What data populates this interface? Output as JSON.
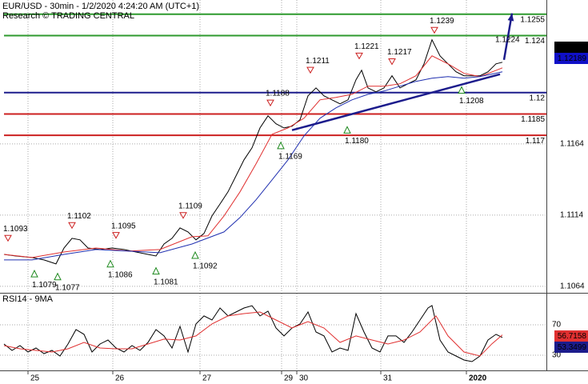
{
  "chart_data": [
    {
      "type": "line",
      "title": "EUR/USD - 30min - 1/2/2020 4:24:20 AM (UTC+1)",
      "subtitle": "Research © TRADING CENTRAL",
      "xlim": [
        0,
        170.75
      ],
      "ylim": [
        1.106,
        1.1265
      ],
      "yticks": [
        1.1164,
        1.1114,
        1.1064
      ],
      "grid": true,
      "series": [
        {
          "color": "#000000",
          "x": [
            1.25,
            5,
            10,
            13.75,
            17.5,
            20,
            22.5,
            25,
            27.5,
            31.25,
            35,
            38.75,
            42.5,
            46.25,
            48.75,
            51.25,
            53.75,
            56.25,
            58.75,
            61.25,
            63.75,
            66.25,
            68.75,
            71.25,
            73.75,
            76.25,
            78.75,
            81.25,
            83.75,
            86.25,
            88.75,
            91.25,
            93.75,
            96.25,
            98.75,
            101.25,
            103.75,
            106.25,
            108.75,
            111.25,
            113,
            115,
            117.5,
            120,
            122.5,
            125,
            127.5,
            130,
            132.5,
            135,
            137.5,
            140,
            142.5,
            145,
            147.5,
            150,
            152.5,
            155,
            157
          ],
          "values": [
            1.10864,
            1.10853,
            1.10842,
            1.10825,
            1.10797,
            1.10909,
            1.10977,
            1.10966,
            1.10909,
            1.10898,
            1.10909,
            1.10898,
            1.10881,
            1.10864,
            1.10853,
            1.10937,
            1.10977,
            1.1105,
            1.11022,
            1.10966,
            1.11011,
            1.11134,
            1.11218,
            1.11303,
            1.11415,
            1.11528,
            1.11612,
            1.11752,
            1.11837,
            1.11781,
            1.11752,
            1.11764,
            1.11809,
            1.11977,
            1.12033,
            1.11977,
            1.11949,
            1.11921,
            1.11949,
            1.1209,
            1.12157,
            1.12033,
            1.12005,
            1.12033,
            1.12118,
            1.12033,
            1.12062,
            1.1209,
            1.12202,
            1.12371,
            1.12258,
            1.12202,
            1.12146,
            1.12118,
            1.12118,
            1.12118,
            1.12146,
            1.12202,
            1.12213
          ]
        },
        {
          "color": "#e03030",
          "x": [
            1.25,
            10,
            20,
            30,
            40,
            50,
            60,
            65,
            70,
            75,
            80,
            85,
            90,
            95,
            100,
            105,
            110,
            115,
            120,
            125,
            130,
            135,
            140,
            145,
            150,
            157
          ],
          "values": [
            1.10864,
            1.10842,
            1.10881,
            1.10909,
            1.10887,
            1.10898,
            1.10988,
            1.10994,
            1.11134,
            1.11303,
            1.11499,
            1.11707,
            1.11752,
            1.1182,
            1.11949,
            1.11966,
            1.11988,
            1.12045,
            1.12045,
            1.12062,
            1.12118,
            1.12258,
            1.12202,
            1.12135,
            1.12112,
            1.12174
          ]
        },
        {
          "color": "#2030b0",
          "x": [
            1.25,
            10,
            20,
            30,
            40,
            50,
            60,
            70,
            75,
            80,
            85,
            90,
            95,
            100,
            105,
            110,
            115,
            120,
            125,
            130,
            135,
            140,
            145,
            150,
            157
          ],
          "values": [
            1.10825,
            1.10825,
            1.10864,
            1.10898,
            1.10887,
            1.10876,
            1.10937,
            1.11022,
            1.11123,
            1.11247,
            1.11387,
            1.11528,
            1.11696,
            1.1182,
            1.11893,
            1.11949,
            1.11988,
            1.12011,
            1.12045,
            1.12079,
            1.12101,
            1.12112,
            1.12101,
            1.12112,
            1.12146
          ]
        }
      ],
      "levels": [
        {
          "value": 1.1255,
          "color": "#2e9a2e"
        },
        {
          "value": 1.124,
          "color": "#2e9a2e"
        },
        {
          "value": 1.12,
          "color": "#1c1c8c"
        },
        {
          "value": 1.1185,
          "color": "#cc2020"
        },
        {
          "value": 1.117,
          "color": "#cc2020"
        }
      ],
      "trendline": {
        "color": "#1c1c8c",
        "x": [
          91.25,
          156.25
        ],
        "values": [
          1.11736,
          1.12129
        ]
      },
      "arrow": {
        "color": "#1c1c8c",
        "x": [
          157.5,
          160
        ],
        "values": [
          1.1223,
          1.12556
        ]
      },
      "highs": [
        {
          "x": 2.5,
          "value": 1.1093
        },
        {
          "x": 22.5,
          "value": 1.1102
        },
        {
          "x": 36.25,
          "value": 1.1095
        },
        {
          "x": 57.25,
          "value": 1.1109
        },
        {
          "x": 84.5,
          "value": 1.1188
        },
        {
          "x": 97,
          "value": 1.1211
        },
        {
          "x": 112.25,
          "value": 1.1221
        },
        {
          "x": 122.5,
          "value": 1.1217
        },
        {
          "x": 135.75,
          "value": 1.1239
        }
      ],
      "target": {
        "x": 157.5,
        "value": 1.1224
      },
      "lows": [
        {
          "x": 10.75,
          "value": 1.1079
        },
        {
          "x": 18,
          "value": 1.1077
        },
        {
          "x": 34.5,
          "value": 1.1086
        },
        {
          "x": 48.75,
          "value": 1.1081
        },
        {
          "x": 61,
          "value": 1.1092
        },
        {
          "x": 87.75,
          "value": 1.1169
        },
        {
          "x": 108.5,
          "value": 1.118,
          "label": "1.1180"
        },
        {
          "x": 144.25,
          "value": 1.1208
        }
      ],
      "last_values": [
        {
          "value": 1.12196,
          "color": "#000000"
        },
        {
          "value": 1.12189,
          "color": "#1010c8"
        }
      ]
    },
    {
      "type": "line",
      "title": "RSI14 - 9MA",
      "xlim": [
        0,
        170.75
      ],
      "ylim": [
        10,
        111
      ],
      "yticks": [
        70,
        30
      ],
      "grid": true,
      "xticks": [
        {
          "value": 8.75,
          "label": "25"
        },
        {
          "value": 35.25,
          "label": "26"
        },
        {
          "value": 62.5,
          "label": "27"
        },
        {
          "value": 88,
          "label": "29"
        },
        {
          "value": 92.75,
          "label": "30"
        },
        {
          "value": 119,
          "label": "31"
        },
        {
          "value": 145.75,
          "label": "2020"
        }
      ],
      "series": [
        {
          "color": "#000000",
          "x": [
            1.25,
            3.75,
            6.25,
            8.75,
            11.25,
            13.75,
            16.25,
            18.75,
            21.25,
            23.75,
            26.25,
            28.75,
            31.25,
            33.75,
            36.25,
            38.75,
            41.25,
            43.75,
            46.25,
            48.75,
            51.25,
            53.75,
            56.25,
            58.75,
            61.25,
            63.75,
            66.25,
            68.75,
            71.25,
            73.75,
            76.25,
            78.75,
            81.25,
            83.75,
            86.25,
            88.75,
            91.25,
            93.75,
            96.25,
            98.75,
            101.25,
            103.75,
            106.25,
            108.75,
            111.25,
            113.75,
            116.25,
            118.75,
            121.25,
            123.75,
            126.25,
            128.75,
            131.25,
            133.75,
            135,
            137.5,
            140,
            142.5,
            145,
            147.5,
            150,
            152.5,
            155,
            157
          ],
          "values": [
            44.7,
            36.3,
            42.6,
            34.2,
            39.5,
            32.1,
            36.3,
            28.9,
            44.7,
            63.7,
            57.4,
            34.2,
            44.7,
            50,
            39.5,
            34.2,
            42.6,
            36.3,
            46.8,
            63.7,
            55.3,
            39.5,
            67.9,
            34.2,
            71.1,
            81.6,
            76.3,
            92.1,
            81.6,
            86.8,
            92.1,
            95,
            81.6,
            88,
            65.8,
            55.3,
            65.8,
            71.1,
            86.8,
            60.5,
            55.3,
            34.2,
            39.5,
            36.3,
            84.7,
            60.5,
            39.5,
            34.2,
            55.3,
            55.3,
            46.8,
            60.5,
            76.3,
            92.1,
            95.3,
            50,
            34.2,
            28.9,
            23.7,
            21.6,
            28.9,
            50,
            57.4,
            53.3499
          ]
        },
        {
          "color": "#e03030",
          "x": [
            1.25,
            6.25,
            11.25,
            16.25,
            21.25,
            26.25,
            31.25,
            36.25,
            41.25,
            46.25,
            51.25,
            56.25,
            61.25,
            66.25,
            71.25,
            76.25,
            81.25,
            86.25,
            91.25,
            96.25,
            101.25,
            106.25,
            111.25,
            116.25,
            121.25,
            126.25,
            131.25,
            136.25,
            140,
            145,
            150,
            153.75,
            157
          ],
          "values": [
            42.6,
            38.4,
            36.3,
            34.2,
            38.4,
            46.8,
            39.5,
            38.4,
            38.4,
            44.7,
            51.1,
            50,
            55.3,
            71.1,
            81.6,
            84.7,
            86.8,
            76.3,
            65.8,
            74.2,
            65.8,
            46.8,
            55.3,
            50,
            44.7,
            50,
            60.5,
            81.6,
            55.3,
            34.2,
            28.9,
            45,
            56.7158
          ]
        }
      ],
      "last_values": [
        {
          "value": 56.7158,
          "color": "#e03030"
        },
        {
          "value": 53.3499,
          "color": "#1c1c8c"
        }
      ]
    }
  ]
}
